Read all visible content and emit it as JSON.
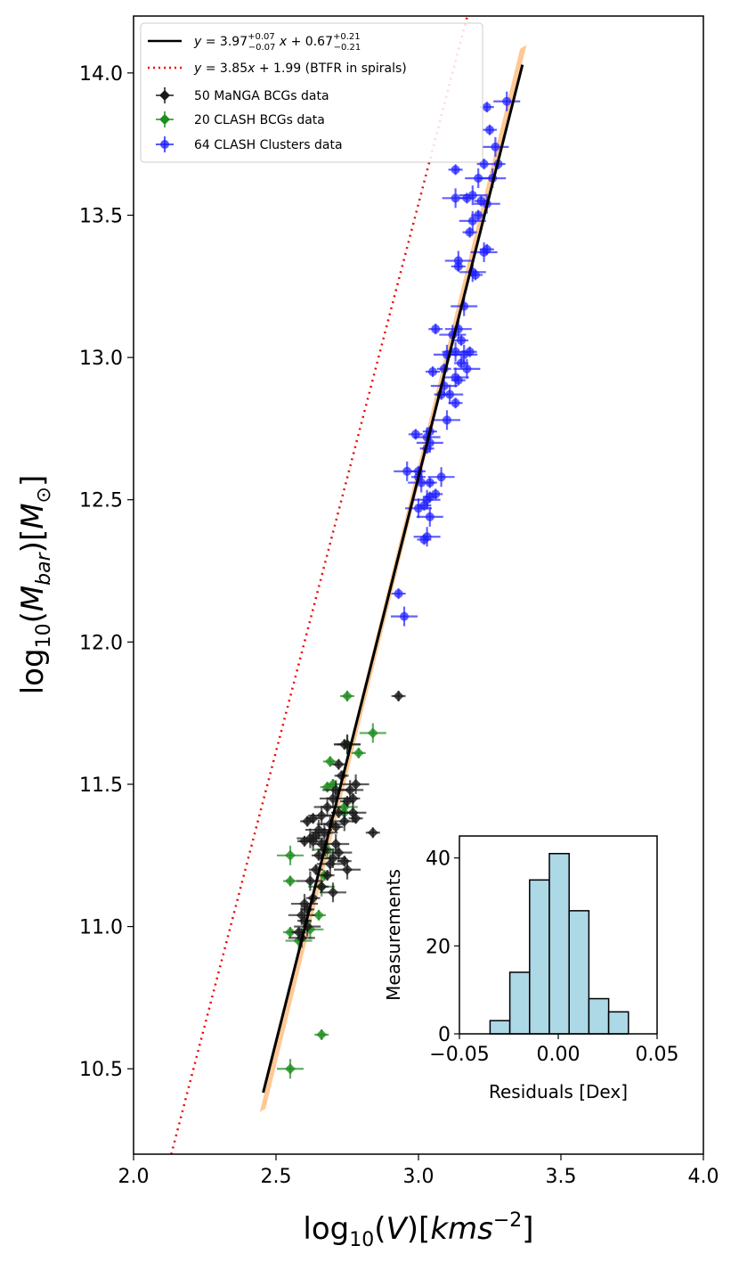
{
  "chart_data": [
    {
      "type": "scatter",
      "title": "",
      "xlabel": "log₁₀(V)[kms⁻²]",
      "ylabel": "log₁₀(M_bar)[M⊙]",
      "xlim": [
        2.0,
        4.0
      ],
      "ylim": [
        10.2,
        14.2
      ],
      "xticks": [
        "2.0",
        "2.5",
        "3.0",
        "3.5",
        "4.0"
      ],
      "yticks": [
        "10.5",
        "11.0",
        "11.5",
        "12.0",
        "12.5",
        "13.0",
        "13.5",
        "14.0"
      ],
      "legend_position": "top-left",
      "legend": [
        "y = 3.97⁺⁰·⁰⁷₋₀.₀₇x + 0.67⁺⁰·²¹₋₀.₂₁",
        "y = 3.85x + 1.99 (BTFR in spirals)",
        "50 MaNGA BCGs data",
        "20 CLASH BCGs data",
        "64 CLASH Clusters data"
      ],
      "lines": [
        {
          "name": "fit",
          "slope": 3.97,
          "intercept": 0.67,
          "x_range": [
            2.455,
            3.365
          ],
          "color": "#000000",
          "style": "solid",
          "band_color": "#ff9a3c"
        },
        {
          "name": "BTFR in spirals",
          "slope": 3.85,
          "intercept": 1.99,
          "x_range": [
            2.0,
            4.0
          ],
          "color": "#ee0000",
          "style": "dotted"
        }
      ],
      "series": [
        {
          "name": "64 CLASH Clusters data",
          "color": "#1f1fff",
          "marker": "circle",
          "points": [
            [
              3.24,
              13.88
            ],
            [
              3.31,
              13.9
            ],
            [
              3.28,
              13.68
            ],
            [
              3.27,
              13.74
            ],
            [
              3.25,
              13.8
            ],
            [
              3.26,
              13.63
            ],
            [
              3.23,
              13.68
            ],
            [
              3.21,
              13.63
            ],
            [
              3.13,
              13.66
            ],
            [
              3.13,
              13.56
            ],
            [
              3.17,
              13.56
            ],
            [
              3.19,
              13.57
            ],
            [
              3.22,
              13.55
            ],
            [
              3.24,
              13.54
            ],
            [
              3.21,
              13.5
            ],
            [
              3.19,
              13.48
            ],
            [
              3.18,
              13.44
            ],
            [
              3.23,
              13.37
            ],
            [
              3.24,
              13.38
            ],
            [
              3.14,
              13.34
            ],
            [
              3.14,
              13.32
            ],
            [
              3.19,
              13.3
            ],
            [
              3.2,
              13.29
            ],
            [
              3.16,
              13.18
            ],
            [
              3.06,
              13.1
            ],
            [
              3.14,
              13.1
            ],
            [
              3.15,
              13.06
            ],
            [
              3.13,
              13.02
            ],
            [
              3.18,
              13.02
            ],
            [
              3.16,
              13.01
            ],
            [
              3.15,
              12.98
            ],
            [
              3.1,
              13.01
            ],
            [
              3.09,
              12.96
            ],
            [
              3.17,
              12.96
            ],
            [
              3.05,
              12.95
            ],
            [
              3.13,
              12.93
            ],
            [
              3.14,
              12.92
            ],
            [
              3.09,
              12.9
            ],
            [
              3.08,
              12.87
            ],
            [
              3.11,
              12.87
            ],
            [
              3.13,
              12.84
            ],
            [
              3.1,
              12.78
            ],
            [
              3.04,
              12.74
            ],
            [
              3.03,
              12.72
            ],
            [
              2.99,
              12.73
            ],
            [
              3.04,
              12.7
            ],
            [
              3.03,
              12.68
            ],
            [
              2.96,
              12.6
            ],
            [
              3.0,
              12.6
            ],
            [
              3.08,
              12.58
            ],
            [
              3.04,
              12.56
            ],
            [
              3.01,
              12.56
            ],
            [
              3.06,
              12.52
            ],
            [
              3.03,
              12.5
            ],
            [
              3.04,
              12.51
            ],
            [
              3.0,
              12.47
            ],
            [
              3.02,
              12.48
            ],
            [
              3.04,
              12.44
            ],
            [
              3.02,
              12.36
            ],
            [
              3.03,
              12.37
            ],
            [
              2.93,
              12.17
            ],
            [
              2.95,
              12.09
            ],
            [
              3.0,
              12.58
            ],
            [
              3.12,
              13.08
            ]
          ]
        },
        {
          "name": "20 CLASH BCGs data",
          "color": "#1e8c1e",
          "marker": "diamond",
          "points": [
            [
              2.75,
              11.81
            ],
            [
              2.84,
              11.68
            ],
            [
              2.69,
              11.58
            ],
            [
              2.75,
              11.64
            ],
            [
              2.79,
              11.61
            ],
            [
              2.74,
              11.42
            ],
            [
              2.68,
              11.49
            ],
            [
              2.55,
              11.25
            ],
            [
              2.55,
              11.16
            ],
            [
              2.68,
              11.27
            ],
            [
              2.67,
              11.18
            ],
            [
              2.66,
              11.14
            ],
            [
              2.65,
              11.04
            ],
            [
              2.62,
              10.99
            ],
            [
              2.55,
              10.98
            ],
            [
              2.58,
              10.95
            ],
            [
              2.66,
              10.62
            ],
            [
              2.55,
              10.5
            ],
            [
              2.7,
              11.5
            ],
            [
              2.74,
              11.4
            ]
          ]
        },
        {
          "name": "50 MaNGA BCGs data",
          "color": "#1a1a1a",
          "marker": "diamond",
          "points": [
            [
              2.93,
              11.81
            ],
            [
              2.75,
              11.64
            ],
            [
              2.72,
              11.57
            ],
            [
              2.78,
              11.5
            ],
            [
              2.73,
              11.53
            ],
            [
              2.71,
              11.48
            ],
            [
              2.77,
              11.45
            ],
            [
              2.7,
              11.45
            ],
            [
              2.75,
              11.44
            ],
            [
              2.68,
              11.42
            ],
            [
              2.72,
              11.4
            ],
            [
              2.77,
              11.4
            ],
            [
              2.78,
              11.38
            ],
            [
              2.74,
              11.37
            ],
            [
              2.63,
              11.38
            ],
            [
              2.66,
              11.39
            ],
            [
              2.61,
              11.37
            ],
            [
              2.69,
              11.36
            ],
            [
              2.71,
              11.35
            ],
            [
              2.65,
              11.34
            ],
            [
              2.64,
              11.32
            ],
            [
              2.67,
              11.33
            ],
            [
              2.84,
              11.33
            ],
            [
              2.62,
              11.31
            ],
            [
              2.6,
              11.3
            ],
            [
              2.63,
              11.3
            ],
            [
              2.66,
              11.29
            ],
            [
              2.71,
              11.29
            ],
            [
              2.67,
              11.27
            ],
            [
              2.72,
              11.26
            ],
            [
              2.65,
              11.25
            ],
            [
              2.7,
              11.24
            ],
            [
              2.74,
              11.23
            ],
            [
              2.69,
              11.22
            ],
            [
              2.64,
              11.2
            ],
            [
              2.75,
              11.2
            ],
            [
              2.68,
              11.18
            ],
            [
              2.62,
              11.16
            ],
            [
              2.66,
              11.14
            ],
            [
              2.7,
              11.12
            ],
            [
              2.63,
              11.1
            ],
            [
              2.6,
              11.08
            ],
            [
              2.61,
              11.06
            ],
            [
              2.59,
              11.04
            ],
            [
              2.6,
              11.02
            ],
            [
              2.61,
              11.0
            ],
            [
              2.58,
              10.98
            ],
            [
              2.59,
              10.96
            ],
            [
              2.74,
              11.64
            ],
            [
              2.76,
              11.48
            ]
          ]
        }
      ]
    },
    {
      "type": "bar",
      "title": "",
      "xlabel": "Residuals [Dex]",
      "ylabel": "Measurements",
      "xlim": [
        -0.05,
        0.05
      ],
      "ylim": [
        0,
        45
      ],
      "xticks": [
        "−0.05",
        "0.00",
        "0.05"
      ],
      "yticks": [
        "0",
        "20",
        "40"
      ],
      "color": "#add8e6",
      "bin_edges": [
        -0.0345,
        -0.0245,
        -0.0145,
        -0.0045,
        0.0055,
        0.0155,
        0.0255,
        0.0355
      ],
      "values": [
        3,
        14,
        35,
        41,
        28,
        8,
        5
      ]
    }
  ]
}
